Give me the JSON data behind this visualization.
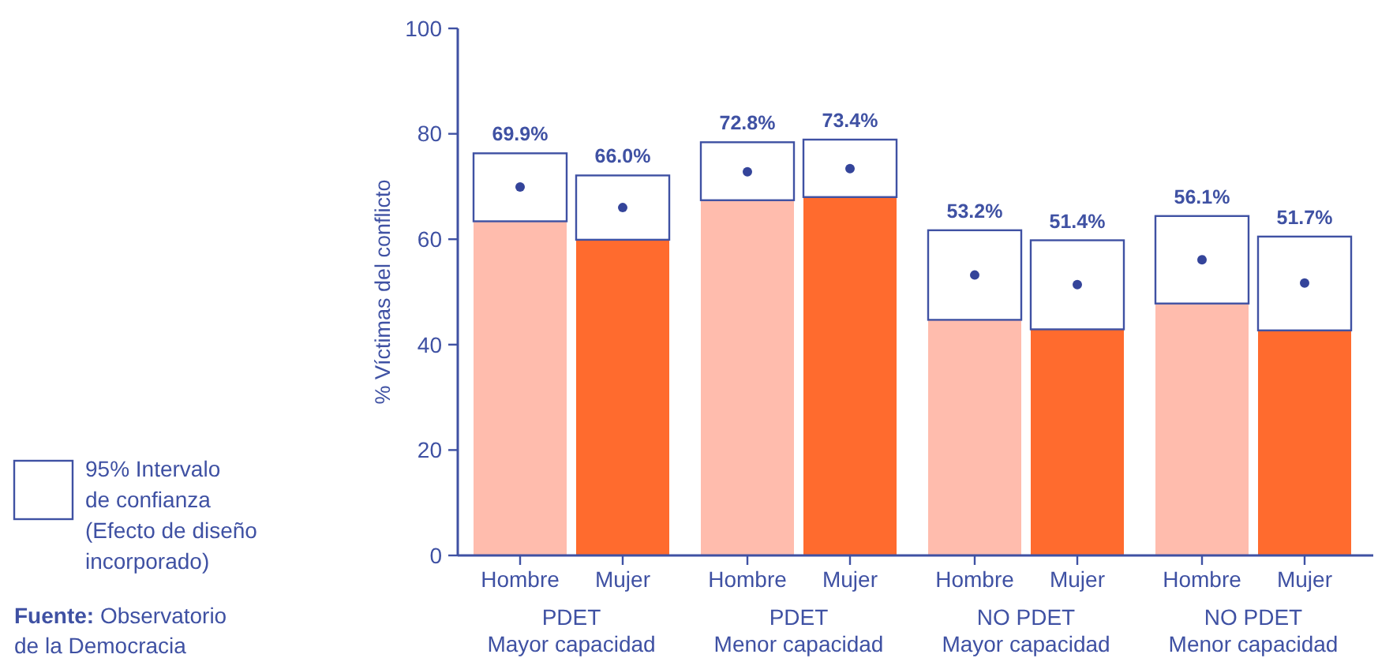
{
  "chart_data": {
    "type": "bar",
    "stacked": true,
    "ylabel": "% Víctimas del conflicto",
    "categories": [
      "Hombre",
      "Mujer",
      "Hombre",
      "Mujer",
      "Hombre",
      "Mujer",
      "Hombre",
      "Mujer"
    ],
    "ylim": [
      0,
      100
    ],
    "yticks": [
      0,
      20,
      40,
      60,
      80,
      100
    ],
    "grid": false,
    "legend": "left",
    "series": [
      {
        "colors": [
          "#ffbcad",
          "#ff6b2e",
          "#ffbcad",
          "#ff6b2e",
          "#ffbcad",
          "#ff6b2e",
          "#ffbcad",
          "#ff6b2e"
        ],
        "values": [
          63.4,
          59.9,
          67.4,
          68.0,
          44.7,
          42.9,
          47.8,
          42.7
        ]
      },
      {
        "name": "95% Intervalo\nde confianza\n(Efecto de diseño\nincorporado)",
        "color": "#ffffff",
        "values": [
          12.9,
          12.2,
          11.0,
          10.9,
          17.0,
          16.9,
          16.6,
          17.8
        ]
      },
      {
        "type": "scatter",
        "color": "#34449a",
        "marker": "circle",
        "values": [
          69.9,
          66.0,
          72.8,
          73.4,
          53.2,
          51.4,
          56.1,
          51.7
        ],
        "value_labels": [
          "69.9%",
          "66.0%",
          "72.8%",
          "73.4%",
          "53.2%",
          "51.4%",
          "56.1%",
          "51.7%"
        ]
      }
    ],
    "annotations": [
      "PDET\nMayor capacidad",
      "PDET\nMenor capacidad",
      "NO PDET\nMayor capacidad",
      "NO PDET\nMenor capacidad",
      "Fuente: Observatorio\nde la Democracia"
    ]
  }
}
